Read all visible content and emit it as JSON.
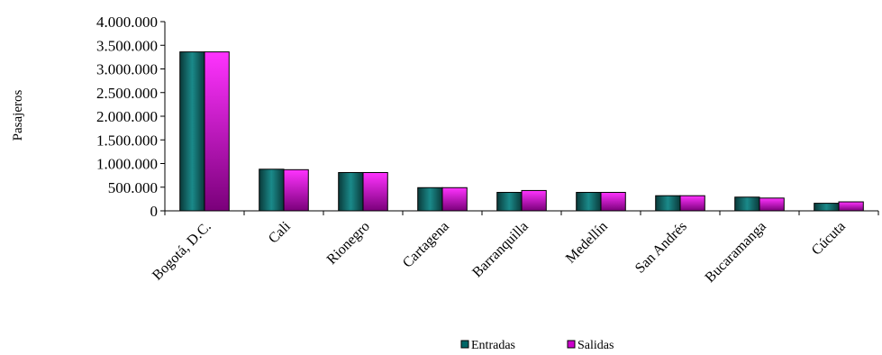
{
  "chart_data": {
    "type": "bar",
    "ylabel": "Pasajeros",
    "xlabel": "",
    "ylim": [
      0,
      4000000
    ],
    "yticks": [
      0,
      500000,
      1000000,
      1500000,
      2000000,
      2500000,
      3000000,
      3500000,
      4000000
    ],
    "ytick_labels": [
      "0",
      "500.000",
      "1.000.000",
      "1.500.000",
      "2.000.000",
      "2.500.000",
      "3.000.000",
      "3.500.000",
      "4.000.000"
    ],
    "categories": [
      "Bogotá, D.C.",
      "Cali",
      "Rionegro",
      "Cartagena",
      "Barranquilla",
      "Medellín",
      "San Andrés",
      "Bucaramanga",
      "Cúcuta"
    ],
    "series": [
      {
        "name": "Entradas",
        "values": [
          3360000,
          880000,
          810000,
          490000,
          390000,
          390000,
          320000,
          290000,
          160000
        ]
      },
      {
        "name": "Salidas",
        "values": [
          3360000,
          870000,
          810000,
          490000,
          430000,
          390000,
          320000,
          270000,
          190000
        ]
      }
    ],
    "legend_position": "bottom",
    "grid": false
  },
  "colors": {
    "entradas": "#006666",
    "salidas": "#cc00cc"
  }
}
